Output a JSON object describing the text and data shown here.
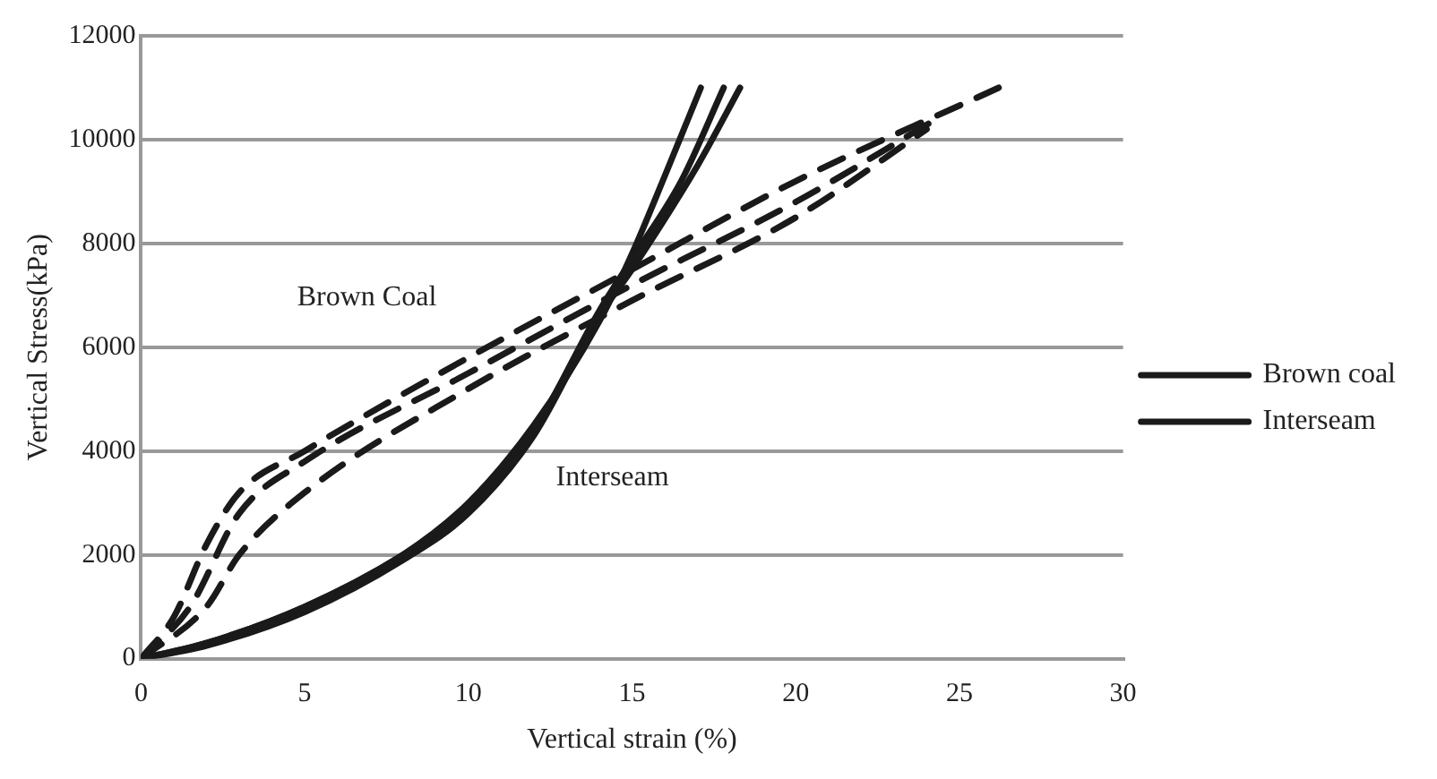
{
  "chart_data": {
    "type": "line",
    "xlabel": "Vertical strain (%)",
    "ylabel": "Vertical Stress(kPa)",
    "xlim": [
      0,
      30
    ],
    "xticks": [
      0,
      5,
      10,
      15,
      20,
      25,
      30
    ],
    "ylim": [
      0,
      12000
    ],
    "yticks": [
      0,
      2000,
      4000,
      6000,
      8000,
      10000,
      12000
    ],
    "grid": "y",
    "legend": "right",
    "marker": "none",
    "series": [
      {
        "name": "Brown coal",
        "color": "#1a1a1a",
        "line_style": "dashed",
        "x": [
          0,
          1,
          2,
          3,
          5,
          10,
          15,
          20,
          26.2
        ],
        "values": [
          0,
          800,
          2200,
          3200,
          4000,
          5800,
          7500,
          9200,
          11000
        ]
      },
      {
        "color": "#1a1a1a",
        "line_style": "dashed",
        "x": [
          0,
          1.5,
          3,
          5,
          10,
          15,
          20,
          24.3
        ],
        "values": [
          0,
          1000,
          2800,
          3800,
          5500,
          7200,
          8800,
          10400
        ]
      },
      {
        "color": "#1a1a1a",
        "line_style": "dashed",
        "x": [
          0,
          2,
          3,
          5,
          10,
          15,
          20,
          24
        ],
        "values": [
          0,
          1000,
          2000,
          3200,
          5200,
          6900,
          8500,
          10200
        ]
      },
      {
        "name": "Interseam",
        "color": "#1a1a1a",
        "line_style": "solid",
        "x": [
          0,
          2,
          5,
          8,
          10,
          12,
          14,
          15,
          16,
          17.1
        ],
        "values": [
          0,
          300,
          1000,
          2000,
          3000,
          4500,
          6500,
          7800,
          9300,
          11000
        ]
      },
      {
        "color": "#1a1a1a",
        "line_style": "solid",
        "x": [
          0,
          2,
          5,
          8,
          10,
          12,
          14,
          15,
          16.5,
          17.8
        ],
        "values": [
          0,
          300,
          1000,
          2000,
          2900,
          4400,
          6700,
          7700,
          9200,
          11000
        ]
      },
      {
        "color": "#1a1a1a",
        "line_style": "solid",
        "x": [
          0,
          2,
          5,
          8,
          10,
          12,
          14,
          15,
          17,
          18.3
        ],
        "values": [
          0,
          250,
          900,
          1900,
          2800,
          4300,
          6600,
          7500,
          9500,
          11000
        ]
      }
    ],
    "annotations": [
      "Brown Coal",
      "Interseam"
    ]
  }
}
